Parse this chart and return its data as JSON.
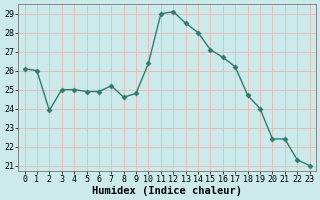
{
  "x": [
    0,
    1,
    2,
    3,
    4,
    5,
    6,
    7,
    8,
    9,
    10,
    11,
    12,
    13,
    14,
    15,
    16,
    17,
    18,
    19,
    20,
    21,
    22,
    23
  ],
  "y": [
    26.1,
    26.0,
    23.9,
    25.0,
    25.0,
    24.9,
    24.9,
    25.2,
    24.6,
    24.8,
    26.4,
    29.0,
    29.1,
    28.5,
    28.0,
    27.1,
    26.7,
    26.2,
    24.7,
    24.0,
    22.4,
    22.4,
    21.3,
    21.0
  ],
  "line_color": "#2d7d6e",
  "marker": "D",
  "marker_size": 2.5,
  "bg_color": "#cceaea",
  "grid_color": "#e8b8b8",
  "xlabel": "Humidex (Indice chaleur)",
  "ylim_min": 20.7,
  "ylim_max": 29.5,
  "xlim_min": -0.5,
  "xlim_max": 23.5,
  "yticks": [
    21,
    22,
    23,
    24,
    25,
    26,
    27,
    28,
    29
  ],
  "xticks": [
    0,
    1,
    2,
    3,
    4,
    5,
    6,
    7,
    8,
    9,
    10,
    11,
    12,
    13,
    14,
    15,
    16,
    17,
    18,
    19,
    20,
    21,
    22,
    23
  ],
  "tick_fontsize": 6,
  "xlabel_fontsize": 7.5,
  "lw": 1.0
}
